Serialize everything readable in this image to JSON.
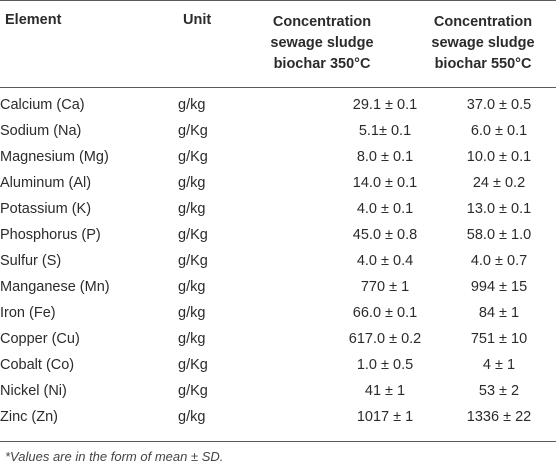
{
  "header": {
    "element": "Element",
    "unit": "Unit",
    "col350": [
      "Concentration",
      "sewage sludge",
      "biochar 350°C"
    ],
    "col550": [
      "Concentration",
      "sewage sludge",
      "biochar 550°C"
    ]
  },
  "rows": [
    {
      "element": "Calcium (Ca)",
      "unit": "g/kg",
      "v350": "29.1 ± 0.1",
      "v550": "37.0 ± 0.5"
    },
    {
      "element": "Sodium (Na)",
      "unit": "g/Kg",
      "v350": "5.1± 0.1",
      "v550": "6.0 ± 0.1"
    },
    {
      "element": "Magnesium (Mg)",
      "unit": "g/Kg",
      "v350": "8.0 ± 0.1",
      "v550": "10.0 ± 0.1"
    },
    {
      "element": "Aluminum (Al)",
      "unit": "g/kg",
      "v350": "14.0 ± 0.1",
      "v550": "24 ± 0.2"
    },
    {
      "element": "Potassium (K)",
      "unit": "g/kg",
      "v350": "4.0 ± 0.1",
      "v550": "13.0 ± 0.1"
    },
    {
      "element": "Phosphorus (P)",
      "unit": "g/Kg",
      "v350": "45.0 ± 0.8",
      "v550": "58.0 ± 1.0"
    },
    {
      "element": "Sulfur (S)",
      "unit": "g/Kg",
      "v350": "4.0 ± 0.4",
      "v550": "4.0 ± 0.7"
    },
    {
      "element": "Manganese (Mn)",
      "unit": "g/kg",
      "v350": "770 ± 1",
      "v550": "994 ± 15"
    },
    {
      "element": "Iron (Fe)",
      "unit": "g/kg",
      "v350": "66.0 ± 0.1",
      "v550": "84 ± 1"
    },
    {
      "element": "Copper (Cu)",
      "unit": "g/kg",
      "v350": "617.0 ± 0.2",
      "v550": "751 ± 10"
    },
    {
      "element": "Cobalt (Co)",
      "unit": "g/Kg",
      "v350": "1.0 ± 0.5",
      "v550": "4 ± 1"
    },
    {
      "element": "Nickel (Ni)",
      "unit": "g/Kg",
      "v350": "41 ± 1",
      "v550": "53 ± 2"
    },
    {
      "element": "Zinc (Zn)",
      "unit": "g/kg",
      "v350": "1017 ± 1",
      "v550": "1336 ± 22"
    }
  ],
  "footnote": "*Values are in the form of mean ± SD."
}
